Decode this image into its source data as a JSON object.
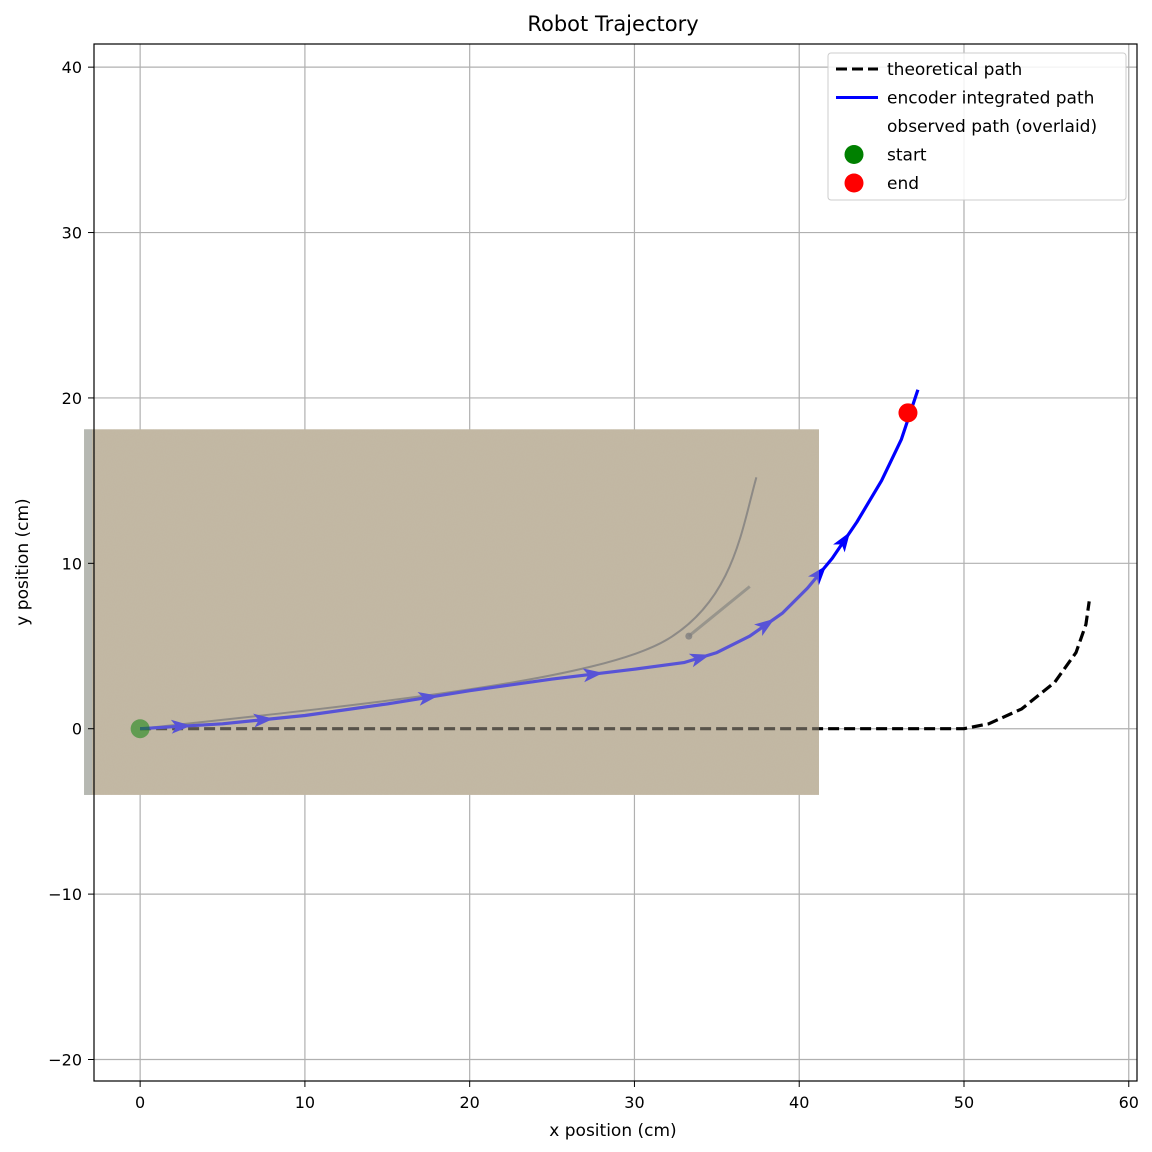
{
  "chart_data": {
    "type": "line",
    "title": "Robot Trajectory",
    "xlabel": "x position (cm)",
    "ylabel": "y position (cm)",
    "xlim": [
      -2.8,
      60.5
    ],
    "ylim": [
      -21.3,
      41.4
    ],
    "xticks": [
      0,
      10,
      20,
      30,
      40,
      50,
      60
    ],
    "yticks": [
      -20,
      -10,
      0,
      10,
      20,
      30,
      40
    ],
    "xtick_labels": [
      "0",
      "10",
      "20",
      "30",
      "40",
      "50",
      "60"
    ],
    "ytick_labels": [
      "−20",
      "−10",
      "0",
      "10",
      "20",
      "30",
      "40"
    ],
    "grid": true,
    "legend_position": "top-right",
    "series": [
      {
        "name": "theoretical path",
        "style": "dashed",
        "color": "#000000",
        "x": [
          0,
          10,
          20,
          30,
          40,
          50,
          51.5,
          53.5,
          55.5,
          56.8,
          57.4,
          57.6
        ],
        "y": [
          0,
          0,
          0,
          0,
          0,
          0,
          0.3,
          1.2,
          2.8,
          4.6,
          6.3,
          7.7
        ]
      },
      {
        "name": "encoder integrated path",
        "style": "solid",
        "color": "#0000ff",
        "x": [
          0,
          5,
          10,
          15,
          20,
          25,
          30,
          33,
          35,
          37,
          39,
          40.5,
          42,
          43.5,
          45,
          46.2,
          47.2
        ],
        "y": [
          0,
          0.3,
          0.8,
          1.5,
          2.3,
          3.0,
          3.6,
          4.0,
          4.6,
          5.6,
          7.0,
          8.5,
          10.3,
          12.5,
          15.0,
          17.5,
          20.5
        ]
      }
    ],
    "observed_path": {
      "name": "observed path (overlaid)",
      "x_extent": [
        -3.4,
        41.2
      ],
      "y_extent": [
        -4,
        18.1
      ]
    },
    "markers": [
      {
        "name": "start",
        "x": 0,
        "y": 0,
        "color": "#008000"
      },
      {
        "name": "end",
        "x": 46.6,
        "y": 19.1,
        "color": "#ff0000"
      }
    ],
    "legend": [
      {
        "label": "theoretical path"
      },
      {
        "label": "encoder integrated path"
      },
      {
        "label": "observed path (overlaid)"
      },
      {
        "label": "start"
      },
      {
        "label": "end"
      }
    ]
  }
}
